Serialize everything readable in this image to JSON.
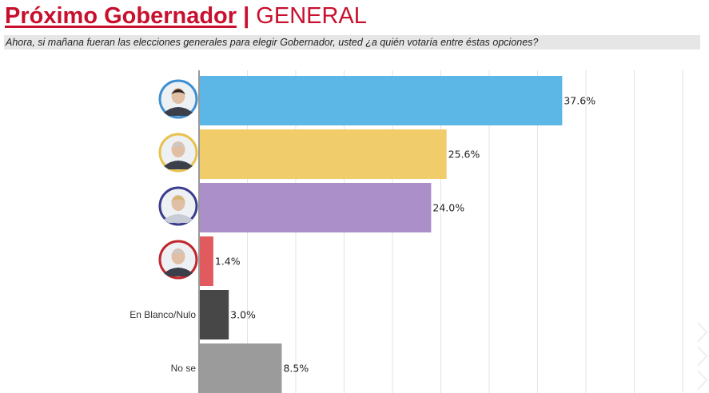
{
  "header": {
    "title_main": "Próximo Gobernador",
    "title_separator": "|",
    "title_sub": "GENERAL",
    "subtitle": "Ahora, si mañana fueran las elecciones generales para elegir Gobernador, usted ¿a quién votaría entre éstas opciones?"
  },
  "chart_data": {
    "type": "bar",
    "orientation": "horizontal",
    "categories": [
      "",
      "",
      "",
      "",
      "En Blanco/Nulo",
      "No se"
    ],
    "values": [
      37.6,
      25.6,
      24.0,
      1.4,
      3.0,
      8.5
    ],
    "value_labels": [
      "37.6%",
      "25.6%",
      "24.0%",
      "1.4%",
      "3.0%",
      "8.5%"
    ],
    "colors": [
      "#5db7e6",
      "#f0cc6b",
      "#aa8fc9",
      "#e05a5e",
      "#474747",
      "#9b9b9b"
    ],
    "avatar_ring_colors": [
      "#3d8fd1",
      "#e8c14f",
      "#3b3d8c",
      "#c0262c"
    ],
    "xlim": [
      0,
      52
    ],
    "grid": true,
    "legend": "none",
    "title": "",
    "xlabel": "",
    "ylabel": ""
  }
}
